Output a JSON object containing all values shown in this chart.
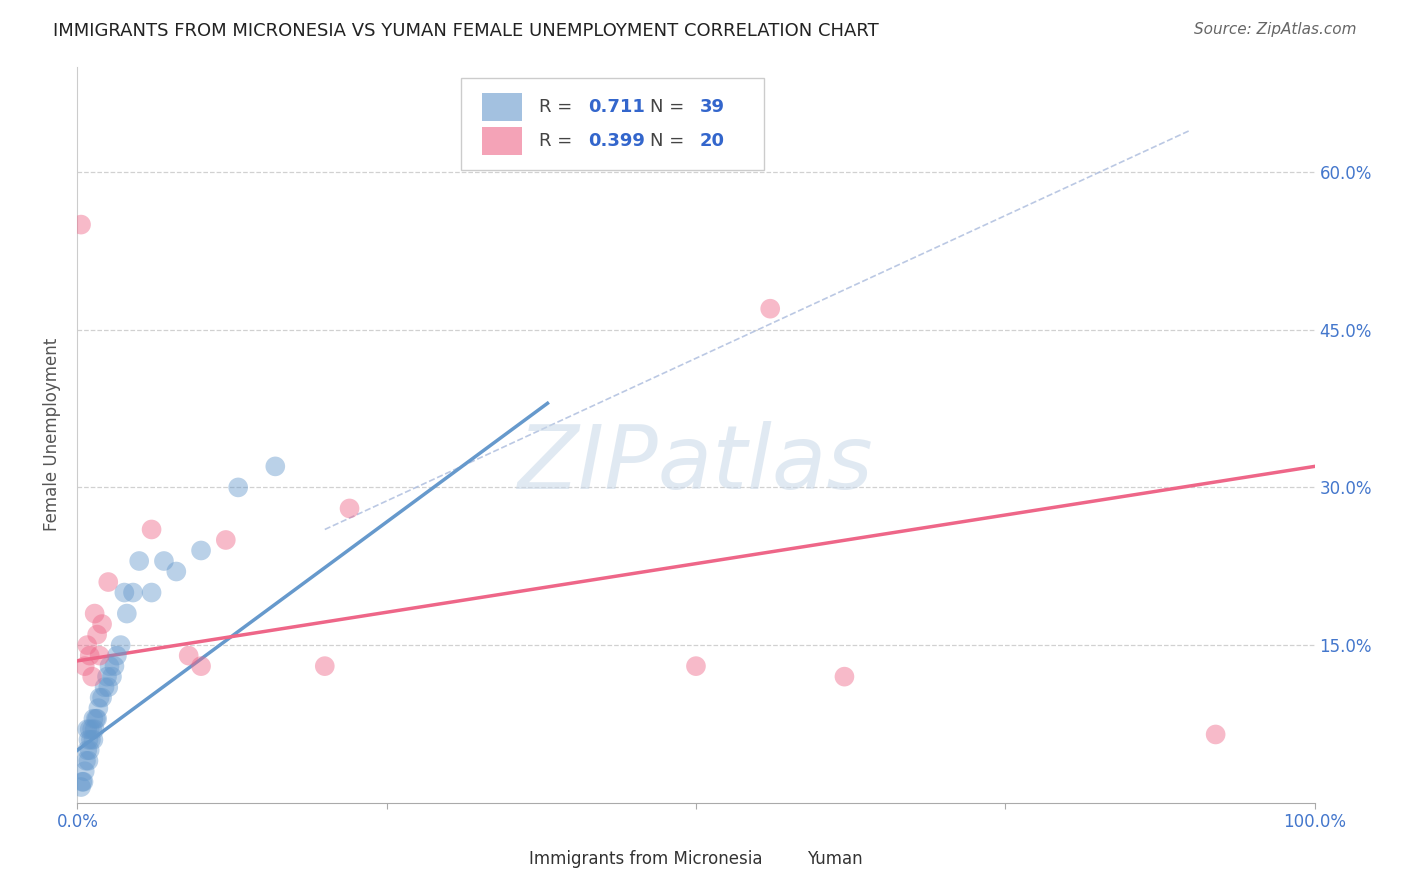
{
  "title": "IMMIGRANTS FROM MICRONESIA VS YUMAN FEMALE UNEMPLOYMENT CORRELATION CHART",
  "source": "Source: ZipAtlas.com",
  "ylabel": "Female Unemployment",
  "xlim": [
    0.0,
    1.0
  ],
  "ylim": [
    0.0,
    0.7
  ],
  "xticks": [
    0.0,
    0.25,
    0.5,
    0.75,
    1.0
  ],
  "xticklabels": [
    "0.0%",
    "",
    "",
    "",
    "100.0%"
  ],
  "ytick_positions": [
    0.15,
    0.3,
    0.45,
    0.6
  ],
  "yticklabels": [
    "15.0%",
    "30.0%",
    "45.0%",
    "60.0%"
  ],
  "grid_color": "#cccccc",
  "background_color": "#ffffff",
  "blue_color": "#6699cc",
  "pink_color": "#ee6688",
  "legend_r_blue": "0.711",
  "legend_n_blue": "39",
  "legend_r_pink": "0.399",
  "legend_n_pink": "20",
  "label_blue": "Immigrants from Micronesia",
  "label_pink": "Yuman",
  "blue_scatter_x": [
    0.003,
    0.004,
    0.005,
    0.006,
    0.007,
    0.008,
    0.008,
    0.009,
    0.009,
    0.01,
    0.01,
    0.011,
    0.012,
    0.013,
    0.013,
    0.014,
    0.015,
    0.016,
    0.017,
    0.018,
    0.02,
    0.022,
    0.024,
    0.025,
    0.026,
    0.028,
    0.03,
    0.032,
    0.035,
    0.038,
    0.04,
    0.045,
    0.05,
    0.06,
    0.07,
    0.08,
    0.1,
    0.13,
    0.16
  ],
  "blue_scatter_y": [
    0.015,
    0.02,
    0.02,
    0.03,
    0.04,
    0.05,
    0.07,
    0.04,
    0.06,
    0.05,
    0.07,
    0.06,
    0.07,
    0.06,
    0.08,
    0.07,
    0.08,
    0.08,
    0.09,
    0.1,
    0.1,
    0.11,
    0.12,
    0.11,
    0.13,
    0.12,
    0.13,
    0.14,
    0.15,
    0.2,
    0.18,
    0.2,
    0.23,
    0.2,
    0.23,
    0.22,
    0.24,
    0.3,
    0.32
  ],
  "pink_scatter_x": [
    0.003,
    0.006,
    0.008,
    0.01,
    0.012,
    0.014,
    0.016,
    0.018,
    0.02,
    0.025,
    0.06,
    0.09,
    0.1,
    0.12,
    0.2,
    0.22,
    0.5,
    0.56,
    0.62,
    0.92
  ],
  "pink_scatter_y": [
    0.55,
    0.13,
    0.15,
    0.14,
    0.12,
    0.18,
    0.16,
    0.14,
    0.17,
    0.21,
    0.26,
    0.14,
    0.13,
    0.25,
    0.13,
    0.28,
    0.13,
    0.47,
    0.12,
    0.065
  ],
  "blue_line_x": [
    0.0,
    0.38
  ],
  "blue_line_y": [
    0.05,
    0.38
  ],
  "pink_line_x": [
    0.0,
    1.0
  ],
  "pink_line_y": [
    0.135,
    0.32
  ],
  "dashed_line_x": [
    0.2,
    0.9
  ],
  "dashed_line_y": [
    0.26,
    0.64
  ]
}
